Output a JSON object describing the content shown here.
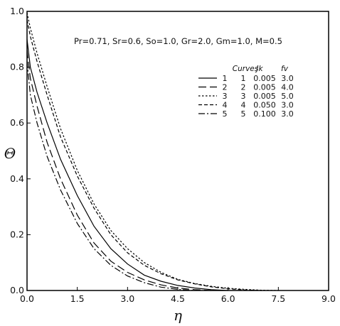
{
  "chart_data": {
    "type": "line",
    "title": "",
    "xlabel": "η",
    "ylabel": "Θ",
    "xlim": [
      0,
      9
    ],
    "ylim": [
      0,
      1
    ],
    "xticks": [
      0,
      1.5,
      3,
      4.5,
      6,
      7.5,
      9
    ],
    "xtick_labels": [
      "0.0",
      "1.5",
      "3.0",
      "4.5",
      "6.0",
      "7.5",
      "9.0"
    ],
    "yticks": [
      0,
      0.2,
      0.4,
      0.6,
      0.8,
      1.0
    ],
    "ytick_labels": [
      "0.0",
      "0.2",
      "0.4",
      "0.6",
      "0.8",
      "1.0"
    ],
    "grid": false,
    "legend_position": "top-right",
    "parameters_text": "Pr=0.71, Sr=0.6, So=1.0, Gr=2.0, Gm=1.0, M=0.5",
    "legend": {
      "headers": [
        "Curves",
        "Jk",
        "fv"
      ],
      "rows": [
        [
          "1",
          "1",
          "0.005",
          "3.0"
        ],
        [
          "2",
          "2",
          "0.005",
          "4.0"
        ],
        [
          "3",
          "3",
          "0.005",
          "5.0"
        ],
        [
          "4",
          "4",
          "0.050",
          "3.0"
        ],
        [
          "5",
          "5",
          "0.100",
          "3.0"
        ]
      ]
    },
    "series": [
      {
        "label": "1",
        "dash": "solid",
        "x": [
          0,
          0.1,
          0.3,
          0.6,
          1.0,
          1.5,
          2.0,
          2.5,
          3.0,
          3.5,
          4.0,
          4.5,
          5.0,
          5.5,
          6.0
        ],
        "y": [
          0.9,
          0.8,
          0.71,
          0.6,
          0.47,
          0.34,
          0.23,
          0.15,
          0.095,
          0.055,
          0.033,
          0.018,
          0.009,
          0.003,
          0.0
        ]
      },
      {
        "label": "2",
        "dash": "long-dash",
        "x": [
          0,
          0.1,
          0.3,
          0.6,
          1.0,
          1.5,
          2.0,
          2.5,
          3.0,
          3.5,
          4.0,
          4.5,
          5.0,
          5.5
        ],
        "y": [
          0.86,
          0.76,
          0.66,
          0.53,
          0.4,
          0.27,
          0.17,
          0.105,
          0.065,
          0.038,
          0.02,
          0.009,
          0.003,
          0.0
        ]
      },
      {
        "label": "3",
        "dash": "dotted",
        "x": [
          0,
          0.1,
          0.3,
          0.6,
          1.0,
          1.5,
          2.0,
          2.5,
          3.0,
          3.5,
          4.0,
          4.5,
          5.0,
          5.5,
          6.0,
          6.5,
          7.0,
          7.5
        ],
        "y": [
          0.995,
          0.94,
          0.85,
          0.73,
          0.58,
          0.43,
          0.31,
          0.215,
          0.15,
          0.1,
          0.065,
          0.04,
          0.025,
          0.015,
          0.008,
          0.004,
          0.001,
          0.0
        ]
      },
      {
        "label": "4",
        "dash": "short-dash",
        "x": [
          0,
          0.1,
          0.3,
          0.6,
          1.0,
          1.5,
          2.0,
          2.5,
          3.0,
          3.5,
          4.0,
          4.5,
          5.0,
          5.5,
          6.0,
          6.5,
          7.0
        ],
        "y": [
          0.97,
          0.91,
          0.82,
          0.7,
          0.55,
          0.41,
          0.295,
          0.2,
          0.135,
          0.09,
          0.06,
          0.038,
          0.024,
          0.013,
          0.006,
          0.002,
          0.0
        ]
      },
      {
        "label": "5",
        "dash": "dash-dot",
        "x": [
          0,
          0.1,
          0.3,
          0.6,
          1.0,
          1.5,
          2.0,
          2.5,
          3.0,
          3.5,
          4.0,
          4.5,
          5.0
        ],
        "y": [
          0.82,
          0.7,
          0.6,
          0.48,
          0.36,
          0.24,
          0.15,
          0.09,
          0.052,
          0.028,
          0.012,
          0.004,
          0.0
        ]
      }
    ]
  }
}
